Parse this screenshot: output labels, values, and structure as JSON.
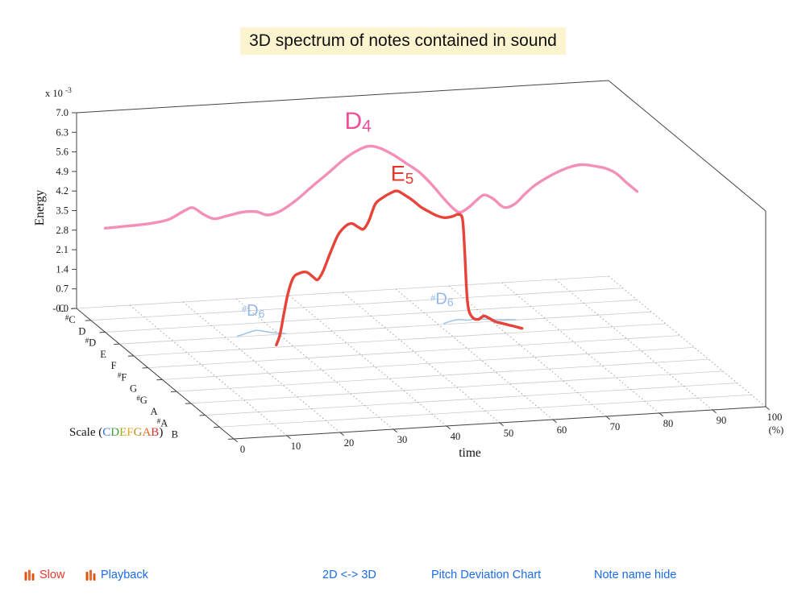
{
  "title": "3D spectrum of notes contained in sound",
  "colors": {
    "title_highlight": "#fcf3cf",
    "link_blue": "#1b6ce6",
    "slow_red": "#e8382e",
    "playback_blue": "#1b6ce6",
    "icon_orange": "#e0540f"
  },
  "axes": {
    "energy_label": "Energy",
    "energy_multiplier": {
      "prefix": "x 10",
      "exp": "-3"
    },
    "energy_ticks": [
      {
        "label": "7.0",
        "value": 7.0
      },
      {
        "label": "6.3",
        "value": 6.3
      },
      {
        "label": "5.6",
        "value": 5.6
      },
      {
        "label": "4.9",
        "value": 4.9
      },
      {
        "label": "4.2",
        "value": 4.2
      },
      {
        "label": "3.5",
        "value": 3.5
      },
      {
        "label": "2.8",
        "value": 2.8
      },
      {
        "label": "2.1",
        "value": 2.1
      },
      {
        "label": "1.4",
        "value": 1.4
      },
      {
        "label": "0.7",
        "value": 0.7
      },
      {
        "label": "-0.0",
        "value": 0.0
      }
    ],
    "notes": [
      "C",
      "#C",
      "D",
      "#D",
      "E",
      "F",
      "#F",
      "G",
      "#G",
      "A",
      "#A",
      "B"
    ],
    "time_label": "time",
    "time_unit": "(%)",
    "time_ticks": [
      {
        "label": "0",
        "value": 0
      },
      {
        "label": "10",
        "value": 10
      },
      {
        "label": "20",
        "value": 20
      },
      {
        "label": "30",
        "value": 30
      },
      {
        "label": "40",
        "value": 40
      },
      {
        "label": "50",
        "value": 50
      },
      {
        "label": "60",
        "value": 60
      },
      {
        "label": "70",
        "value": 70
      },
      {
        "label": "80",
        "value": 80
      },
      {
        "label": "90",
        "value": 90
      },
      {
        "label": "100",
        "value": 100
      }
    ],
    "scale_label": {
      "prefix": "Scale (",
      "suffix": ")",
      "letters": [
        {
          "ch": "C",
          "color": "#3a6fd8"
        },
        {
          "ch": "D",
          "color": "#3f9f3f"
        },
        {
          "ch": "E",
          "color": "#a3ad17"
        },
        {
          "ch": "F",
          "color": "#e8a61a"
        },
        {
          "ch": "G",
          "color": "#c8881a"
        },
        {
          "ch": "A",
          "color": "#e86a1a"
        },
        {
          "ch": "B",
          "color": "#e03030"
        }
      ]
    }
  },
  "chart_data": {
    "type": "line",
    "projection": "3d",
    "title": "3D spectrum of notes contained in sound",
    "xlabel": "time",
    "x_unit": "(%)",
    "zlabel": "Energy",
    "z_multiplier": "x 10^-3",
    "xlim": [
      0,
      100
    ],
    "zlim": [
      0,
      7.0
    ],
    "depth_axis": "musical note",
    "depth_categories": [
      "C",
      "#C",
      "D",
      "#D",
      "E",
      "F",
      "#F",
      "G",
      "#G",
      "A",
      "#A",
      "B"
    ],
    "grid": "floor dotted time lines + note row lines",
    "series": [
      {
        "id": "D4",
        "note": "D",
        "color": "#f48fb8",
        "width": 3.4,
        "label": {
          "sup": "",
          "main": "D",
          "sub": "4",
          "color": "#ee4f97",
          "size": 30,
          "t": 45,
          "e": 6.75
        },
        "points": [
          [
            0,
            3.72
          ],
          [
            3,
            3.74
          ],
          [
            6,
            3.76
          ],
          [
            9,
            3.8
          ],
          [
            12,
            3.9
          ],
          [
            15,
            4.18
          ],
          [
            16.5,
            4.26
          ],
          [
            18.5,
            4.0
          ],
          [
            20.5,
            3.82
          ],
          [
            23,
            3.9
          ],
          [
            26,
            4.0
          ],
          [
            28.5,
            3.98
          ],
          [
            30.5,
            3.84
          ],
          [
            33,
            3.96
          ],
          [
            36,
            4.32
          ],
          [
            39,
            4.78
          ],
          [
            42,
            5.22
          ],
          [
            45,
            5.68
          ],
          [
            47.5,
            5.96
          ],
          [
            49.5,
            6.08
          ],
          [
            51.5,
            6.0
          ],
          [
            54,
            5.74
          ],
          [
            56.5,
            5.4
          ],
          [
            59,
            5.05
          ],
          [
            61.5,
            4.55
          ],
          [
            63.5,
            4.08
          ],
          [
            65.5,
            3.66
          ],
          [
            66.8,
            3.52
          ],
          [
            68.5,
            3.7
          ],
          [
            70.5,
            4.02
          ],
          [
            71.5,
            4.08
          ],
          [
            73,
            3.92
          ],
          [
            75,
            3.6
          ],
          [
            77,
            3.7
          ],
          [
            79,
            4.05
          ],
          [
            81,
            4.35
          ],
          [
            84,
            4.66
          ],
          [
            87,
            4.88
          ],
          [
            89.5,
            4.96
          ],
          [
            92,
            4.88
          ],
          [
            94,
            4.78
          ],
          [
            96,
            4.58
          ],
          [
            98,
            4.22
          ],
          [
            100,
            3.88
          ]
        ]
      },
      {
        "id": "sharpD6-1",
        "note": "#D",
        "color": "#9fc2ec",
        "width": 1.5,
        "label": {
          "sup": "#",
          "main": "D",
          "sub": "6",
          "color": "#93b9e8",
          "size": 20,
          "t": 23,
          "e": 0.75
        },
        "points": [
          [
            22.2,
            0.03
          ],
          [
            23.4,
            0.08
          ],
          [
            24.6,
            0.15
          ],
          [
            25.8,
            0.19
          ],
          [
            27,
            0.15
          ],
          [
            28.4,
            0.09
          ],
          [
            29.8,
            0.05
          ],
          [
            31.2,
            0.02
          ]
        ]
      },
      {
        "id": "sharpD6-2",
        "note": "#D",
        "color": "#9fc2ec",
        "width": 1.5,
        "label": {
          "sup": "#",
          "main": "D",
          "sub": "6",
          "color": "#93b9e8",
          "size": 20,
          "t": 58.5,
          "e": 0.75
        },
        "points": [
          [
            61,
            0.03
          ],
          [
            62.3,
            0.1
          ],
          [
            63.8,
            0.14
          ],
          [
            65.5,
            0.1
          ],
          [
            67.2,
            0.13
          ],
          [
            69,
            0.09
          ],
          [
            71,
            0.05
          ],
          [
            73,
            0.03
          ],
          [
            74.5,
            0.01
          ]
        ]
      },
      {
        "id": "E5",
        "note": "E",
        "color": "#e84338",
        "width": 3.4,
        "label": {
          "sup": "",
          "main": "E",
          "sub": "5",
          "color": "#e8372a",
          "size": 27,
          "t": 48.3,
          "e": 5.7
        },
        "points": [
          [
            26.8,
            0.08
          ],
          [
            27.5,
            0.45
          ],
          [
            28.2,
            1.15
          ],
          [
            29,
            1.9
          ],
          [
            30,
            2.45
          ],
          [
            31.2,
            2.6
          ],
          [
            32.5,
            2.62
          ],
          [
            33.8,
            2.42
          ],
          [
            34.6,
            2.33
          ],
          [
            35.6,
            2.62
          ],
          [
            37,
            3.28
          ],
          [
            38.4,
            3.88
          ],
          [
            39.8,
            4.18
          ],
          [
            41,
            4.26
          ],
          [
            42.2,
            4.12
          ],
          [
            43.2,
            4.04
          ],
          [
            44.2,
            4.32
          ],
          [
            45.4,
            4.9
          ],
          [
            46.8,
            5.12
          ],
          [
            48.2,
            5.26
          ],
          [
            49.5,
            5.33
          ],
          [
            51,
            5.16
          ],
          [
            52.5,
            4.95
          ],
          [
            54,
            4.7
          ],
          [
            55.5,
            4.52
          ],
          [
            57,
            4.36
          ],
          [
            58.5,
            4.27
          ],
          [
            60,
            4.3
          ],
          [
            61,
            4.36
          ],
          [
            61.8,
            4.18
          ],
          [
            62.2,
            3.1
          ],
          [
            62.6,
            1.55
          ],
          [
            63,
            0.9
          ],
          [
            63.8,
            0.62
          ],
          [
            64.8,
            0.56
          ],
          [
            65.8,
            0.67
          ],
          [
            66.8,
            0.58
          ],
          [
            68,
            0.44
          ],
          [
            69.2,
            0.37
          ],
          [
            70.5,
            0.29
          ],
          [
            71.8,
            0.22
          ],
          [
            73,
            0.14
          ]
        ]
      }
    ]
  },
  "toolbar": {
    "slow": "Slow",
    "playback": "Playback",
    "toggle_2d3d": "2D <-> 3D",
    "pitch_deviation": "Pitch Deviation Chart",
    "note_name_hide": "Note name hide"
  }
}
